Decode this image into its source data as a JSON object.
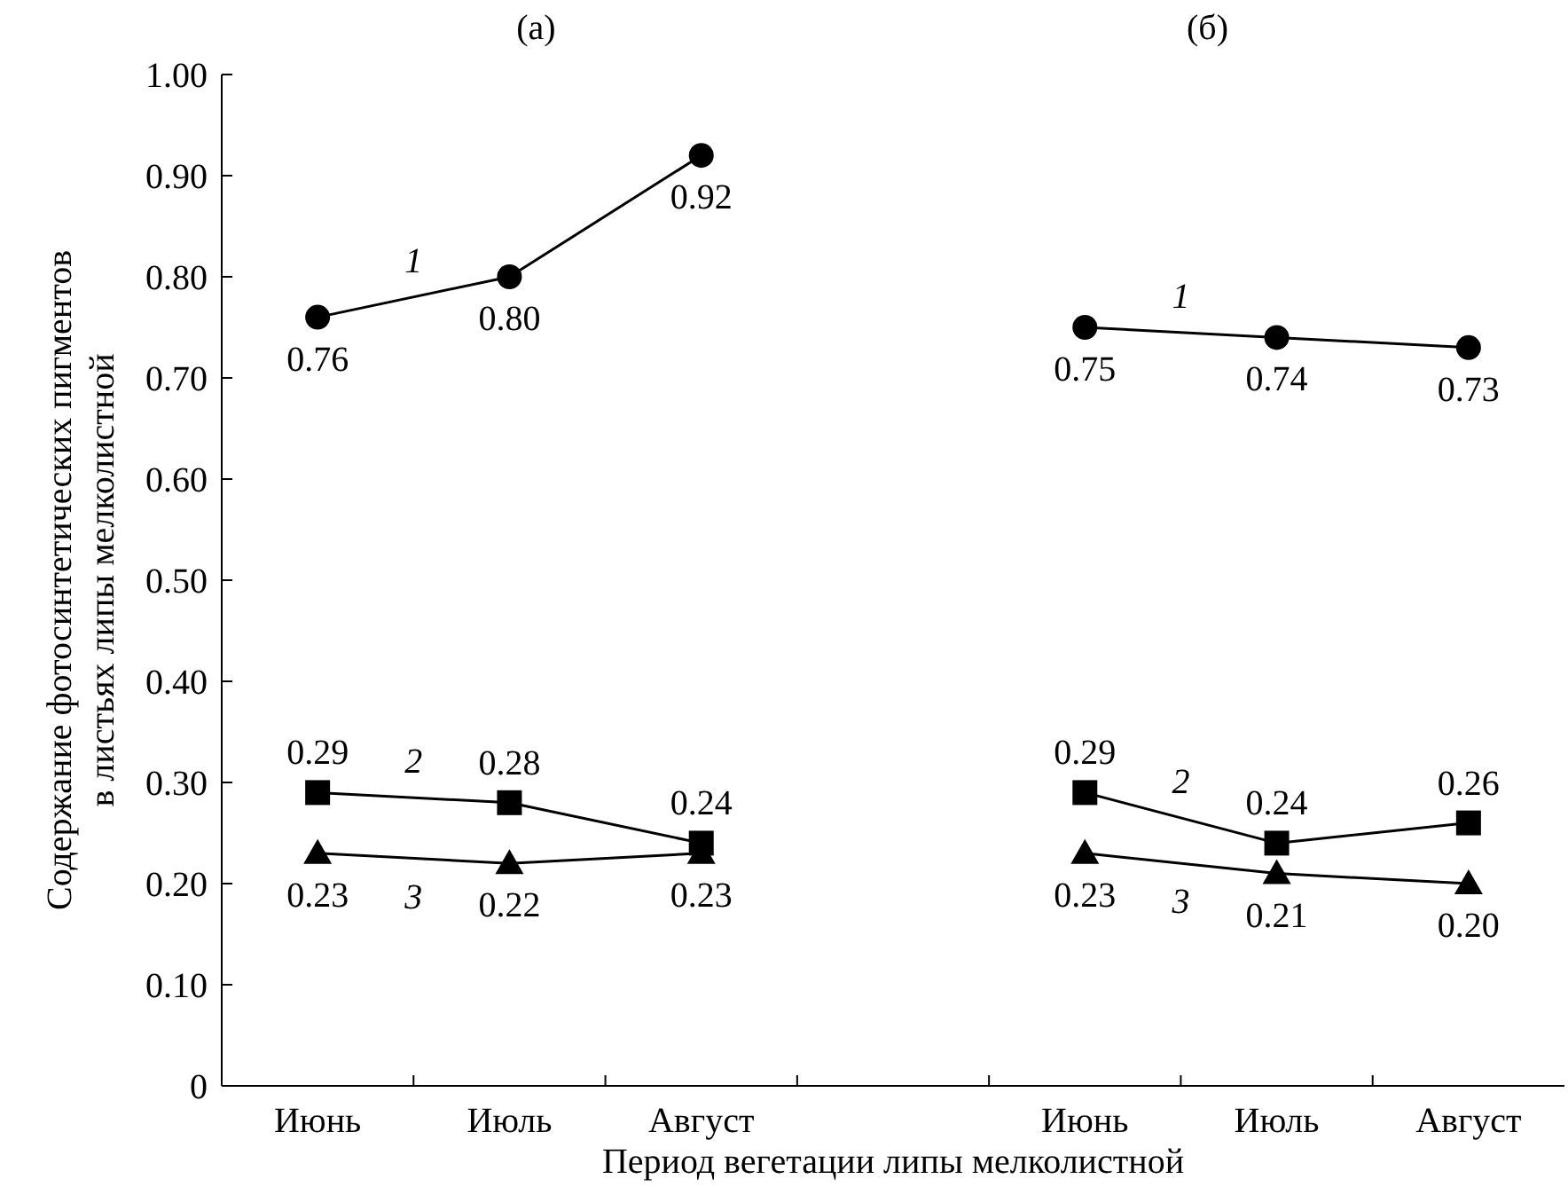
{
  "chart_data": {
    "type": "line",
    "xlabel": "Период вегетации липы мелколистной",
    "ylabel": "Содержание фотосинтетических пигментов в листьях липы мелколистной",
    "categories": [
      "Июнь",
      "Июль",
      "Август",
      null,
      "Июнь",
      "Июль",
      "Август"
    ],
    "ylim": [
      0,
      1
    ],
    "yticks": [
      0,
      {
        "value": 0.1,
        "label": "0.10"
      },
      {
        "value": 0.2,
        "label": "0.20"
      },
      {
        "value": 0.3,
        "label": "0.30"
      },
      {
        "value": 0.4,
        "label": "0.40"
      },
      {
        "value": 0.5,
        "label": "0.50"
      },
      {
        "value": 0.6,
        "label": "0.60"
      },
      {
        "value": 0.7,
        "label": "0.70"
      },
      {
        "value": 0.8,
        "label": "0.80"
      },
      {
        "value": 0.9,
        "label": "0.90"
      },
      {
        "value": 1,
        "label": "1.00"
      }
    ],
    "annotations": [
      "(а)",
      "(б)"
    ],
    "series": [
      {
        "name": "1",
        "color": "#000000",
        "marker": "circle",
        "values": [
          0.76,
          0.8,
          0.92,
          null,
          0.75,
          0.74,
          0.73
        ],
        "value_labels": [
          "0.76",
          "0.80",
          "0.92",
          null,
          "0.75",
          "0.74",
          "0.73"
        ]
      },
      {
        "name": "2",
        "color": "#000000",
        "marker": "square",
        "values": [
          0.29,
          0.28,
          0.24,
          null,
          0.29,
          0.24,
          0.26
        ],
        "value_labels": [
          "0.29",
          "0.28",
          "0.24",
          null,
          "0.29",
          "0.24",
          "0.26"
        ]
      },
      {
        "name": "3",
        "color": "#000000",
        "marker": "triangle",
        "values": [
          0.23,
          0.22,
          0.23,
          null,
          0.23,
          0.21,
          0.2
        ],
        "value_labels": [
          "0.23",
          "0.22",
          "0.23",
          null,
          "0.23",
          "0.21",
          "0.20"
        ]
      }
    ],
    "grid": false,
    "line_style": "solid"
  }
}
